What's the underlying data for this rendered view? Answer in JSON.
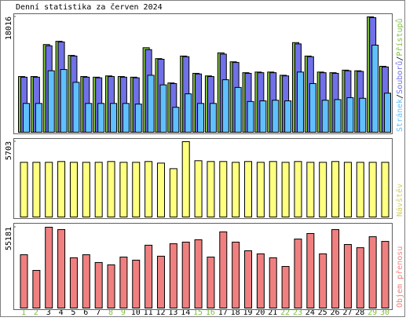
{
  "title": "Denní statistika za červen 2024",
  "x_axis": {
    "categories": [
      "1",
      "2",
      "3",
      "4",
      "5",
      "6",
      "7",
      "8",
      "9",
      "10",
      "11",
      "12",
      "13",
      "14",
      "15",
      "16",
      "17",
      "18",
      "19",
      "20",
      "21",
      "22",
      "23",
      "24",
      "25",
      "26",
      "27",
      "28",
      "29",
      "30"
    ],
    "label_colors": [
      "#80c040",
      "#80c040",
      "#000000",
      "#000000",
      "#000000",
      "#000000",
      "#000000",
      "#80c040",
      "#80c040",
      "#000000",
      "#000000",
      "#000000",
      "#000000",
      "#000000",
      "#80c040",
      "#80c040",
      "#000000",
      "#000000",
      "#000000",
      "#000000",
      "#000000",
      "#80c040",
      "#80c040",
      "#000000",
      "#000000",
      "#000000",
      "#000000",
      "#000000",
      "#80c040",
      "#80c040"
    ]
  },
  "legend_separator": "/",
  "chart_data": [
    {
      "type": "bar",
      "ylim": [
        0,
        18016
      ],
      "yticks": [
        18016
      ],
      "series": [
        {
          "name": "Přístupů",
          "color": "#80c040",
          "values": [
            8700,
            8700,
            13700,
            14200,
            12000,
            8700,
            8600,
            8800,
            8700,
            8600,
            13200,
            11500,
            7700,
            11900,
            9200,
            8800,
            12400,
            11000,
            9300,
            9400,
            9400,
            8900,
            14000,
            11900,
            9400,
            9300,
            9700,
            9600,
            18016,
            10300
          ]
        },
        {
          "name": "Souborů",
          "color": "#7070e8",
          "values": [
            8600,
            8600,
            13500,
            14100,
            11900,
            8600,
            8500,
            8700,
            8600,
            8500,
            12900,
            11400,
            7600,
            11800,
            9100,
            8700,
            12200,
            10900,
            9200,
            9300,
            9300,
            8800,
            13800,
            11800,
            9300,
            9200,
            9600,
            9500,
            17900,
            10200
          ]
        },
        {
          "name": "Stránek",
          "color": "#60c0ff",
          "values": [
            4500,
            4500,
            9600,
            9800,
            7800,
            4500,
            4500,
            4500,
            4500,
            4400,
            8900,
            7400,
            3900,
            6000,
            4500,
            4500,
            8200,
            7000,
            4800,
            4900,
            5000,
            4900,
            9400,
            7600,
            5000,
            5100,
            5400,
            5300,
            13600,
            6100
          ]
        }
      ]
    },
    {
      "type": "bar",
      "ylim": [
        0,
        5703
      ],
      "yticks": [
        5703
      ],
      "series": [
        {
          "name": "Návštěv",
          "color": "#ffff80",
          "label_color": "#d0d060",
          "values": [
            4140,
            4140,
            4140,
            4200,
            4140,
            4140,
            4140,
            4200,
            4140,
            4140,
            4200,
            4080,
            3660,
            5703,
            4260,
            4200,
            4200,
            4140,
            4200,
            4140,
            4200,
            4140,
            4200,
            4140,
            4140,
            4200,
            4140,
            4140,
            4140,
            4140
          ]
        }
      ]
    },
    {
      "type": "bar",
      "ylim": [
        0,
        55181
      ],
      "yticks": [
        55181
      ],
      "series": [
        {
          "name": "Objem přenosu",
          "color": "#f08080",
          "label_color": "#f08080",
          "values": [
            36400,
            25700,
            55181,
            53600,
            34300,
            36400,
            31100,
            29500,
            34800,
            32700,
            42900,
            35400,
            43900,
            45000,
            46600,
            34800,
            52000,
            45000,
            39100,
            37000,
            34300,
            28400,
            47100,
            50900,
            37000,
            53600,
            43400,
            41200,
            48700,
            45500
          ]
        }
      ]
    }
  ]
}
